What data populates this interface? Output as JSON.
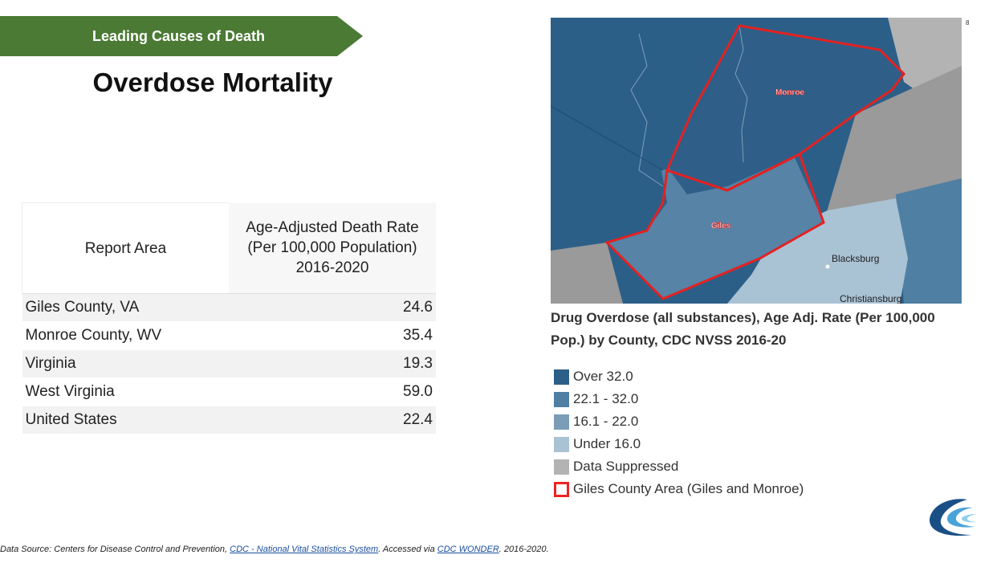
{
  "header": {
    "banner_label": "Leading Causes of Death",
    "title": "Overdose Mortality",
    "page_number": "8"
  },
  "table": {
    "headers": {
      "area": "Report Area",
      "rate_line1": "Age-Adjusted Death Rate",
      "rate_line2": "(Per 100,000 Population)",
      "rate_line3": "2016-2020"
    },
    "rows": [
      {
        "area": "Giles County, VA",
        "rate": "24.6"
      },
      {
        "area": "Monroe County, WV",
        "rate": "35.4"
      },
      {
        "area": "Virginia",
        "rate": "19.3"
      },
      {
        "area": "West Virginia",
        "rate": "59.0"
      },
      {
        "area": "United States",
        "rate": "22.4"
      }
    ]
  },
  "map": {
    "labels": {
      "monroe": "Monroe",
      "giles": "Giles",
      "blacksburg": "Blacksburg",
      "christiansburg": "Christiansburg"
    },
    "colors": {
      "over_32": "#2c5f88",
      "r22_32": "#4f7fa3",
      "r16_22": "#7b9db8",
      "under_16": "#a9c2d4",
      "suppressed": "#b3b3b3",
      "outline": "#e22222"
    }
  },
  "caption": {
    "line1": "Drug Overdose (all substances), Age Adj. Rate (Per 100,000",
    "line2": "Pop.) by County, CDC NVSS 2016-20"
  },
  "legend": [
    {
      "label": "Over 32.0",
      "color": "#2c5f88"
    },
    {
      "label": "22.1 - 32.0",
      "color": "#4f7fa3"
    },
    {
      "label": "16.1 - 22.0",
      "color": "#7b9db8"
    },
    {
      "label": "Under 16.0",
      "color": "#a9c2d4"
    },
    {
      "label": "Data Suppressed",
      "color": "#b3b3b3"
    },
    {
      "label": "Giles County Area (Giles and Monroe)",
      "color": "#e22222"
    }
  ],
  "footer": {
    "prefix": "Data Source: Centers for Disease Control and Prevention, ",
    "link1": "CDC - National Vital Statistics System",
    "middle": ". Accessed via ",
    "link2": "CDC WONDER",
    "suffix": ". 2016-2020."
  }
}
